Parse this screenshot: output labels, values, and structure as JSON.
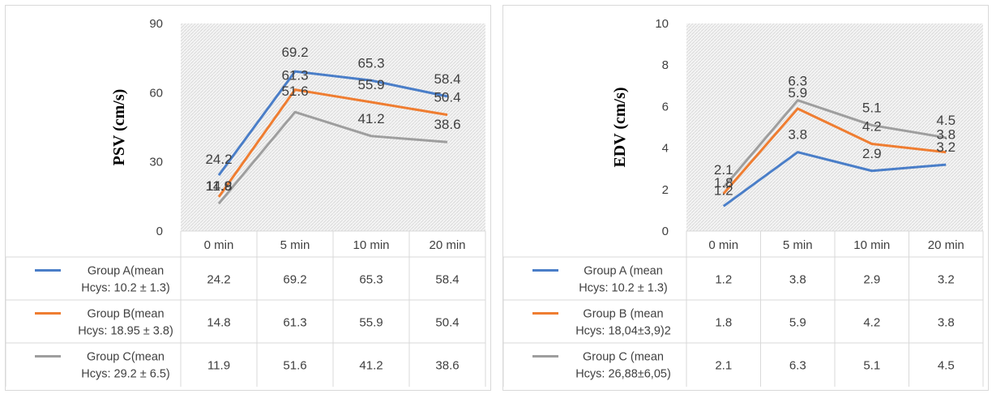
{
  "colors": {
    "blue": "#4a7ec8",
    "orange": "#ef7d31",
    "gray": "#9e9e9e"
  },
  "chart_data": [
    {
      "type": "line",
      "ylabel": "PSV (cm/s)",
      "ylim": [
        0,
        90
      ],
      "yticks": [
        "0",
        "30",
        "60",
        "90"
      ],
      "categories": [
        "0 min",
        "5 min",
        "10 min",
        "20 min"
      ],
      "grid": false,
      "legend": "data-table",
      "series": [
        {
          "name_line1": "Group A(mean",
          "name_line2": "Hcys: 10.2 ± 1.3)",
          "color": "blue",
          "values": [
            24.2,
            69.2,
            65.3,
            58.4
          ]
        },
        {
          "name_line1": "Group B(mean",
          "name_line2": "Hcys: 18.95 ± 3.8)",
          "color": "orange",
          "values": [
            14.8,
            61.3,
            55.9,
            50.4
          ]
        },
        {
          "name_line1": "Group C(mean",
          "name_line2": "Hcys: 29.2 ± 6.5)",
          "color": "gray",
          "values": [
            11.9,
            51.6,
            41.2,
            38.6
          ]
        }
      ]
    },
    {
      "type": "line",
      "ylabel": "EDV (cm/s)",
      "ylim": [
        0,
        10
      ],
      "yticks": [
        "0",
        "2",
        "4",
        "6",
        "8",
        "10"
      ],
      "categories": [
        "0 min",
        "5 min",
        "10 min",
        "20 min"
      ],
      "grid": false,
      "legend": "data-table",
      "series": [
        {
          "name_line1": "Group A (mean",
          "name_line2": "Hcys: 10.2 ± 1.3)",
          "color": "blue",
          "values": [
            1.2,
            3.8,
            2.9,
            3.2
          ]
        },
        {
          "name_line1": "Group B (mean",
          "name_line2": "Hcys: 18,04±3,9)2",
          "color": "orange",
          "values": [
            1.8,
            5.9,
            4.2,
            3.8
          ]
        },
        {
          "name_line1": "Group C (mean",
          "name_line2": "Hcys: 26,88±6,05)",
          "color": "gray",
          "values": [
            2.1,
            6.3,
            5.1,
            4.5
          ]
        }
      ]
    }
  ]
}
